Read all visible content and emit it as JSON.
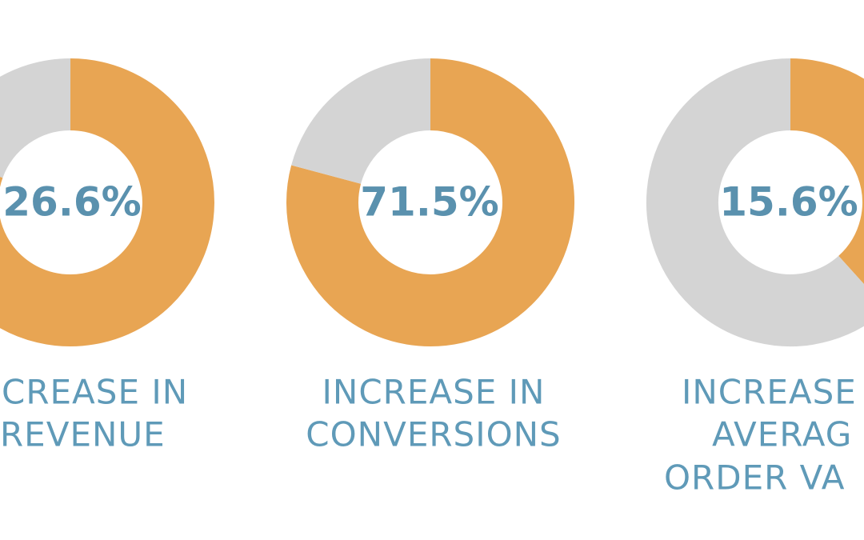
{
  "stats": [
    {
      "figure": "26.6%",
      "lines": [
        "CREASE IN",
        "REVENUE"
      ]
    },
    {
      "figure": "71.5%",
      "lines": [
        "INCREASE IN",
        "CONVERSIONS"
      ]
    },
    {
      "figure": "15.6%",
      "lines": [
        "INCREASE",
        "AVERAG",
        "ORDER VA"
      ]
    }
  ]
}
